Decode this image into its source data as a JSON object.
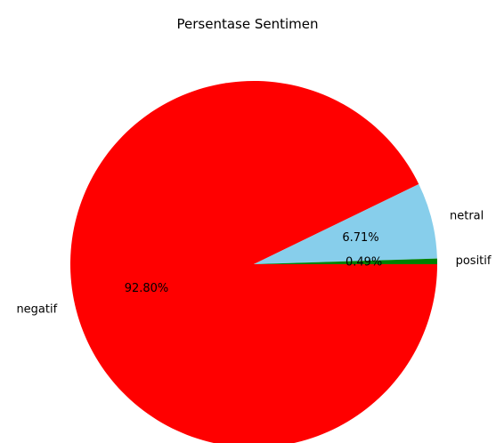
{
  "chart_data": {
    "type": "pie",
    "title": "Persentase Sentimen",
    "categories": [
      "negatif",
      "netral",
      "positif"
    ],
    "values": [
      92.8,
      6.71,
      0.49
    ],
    "value_labels": [
      "92.80%",
      "6.71%",
      "0.49%"
    ],
    "colors": [
      "#ff0000",
      "#87ceeb",
      "#008000"
    ],
    "legend": "none",
    "start_angle_deg": 0,
    "direction": "clockwise"
  }
}
